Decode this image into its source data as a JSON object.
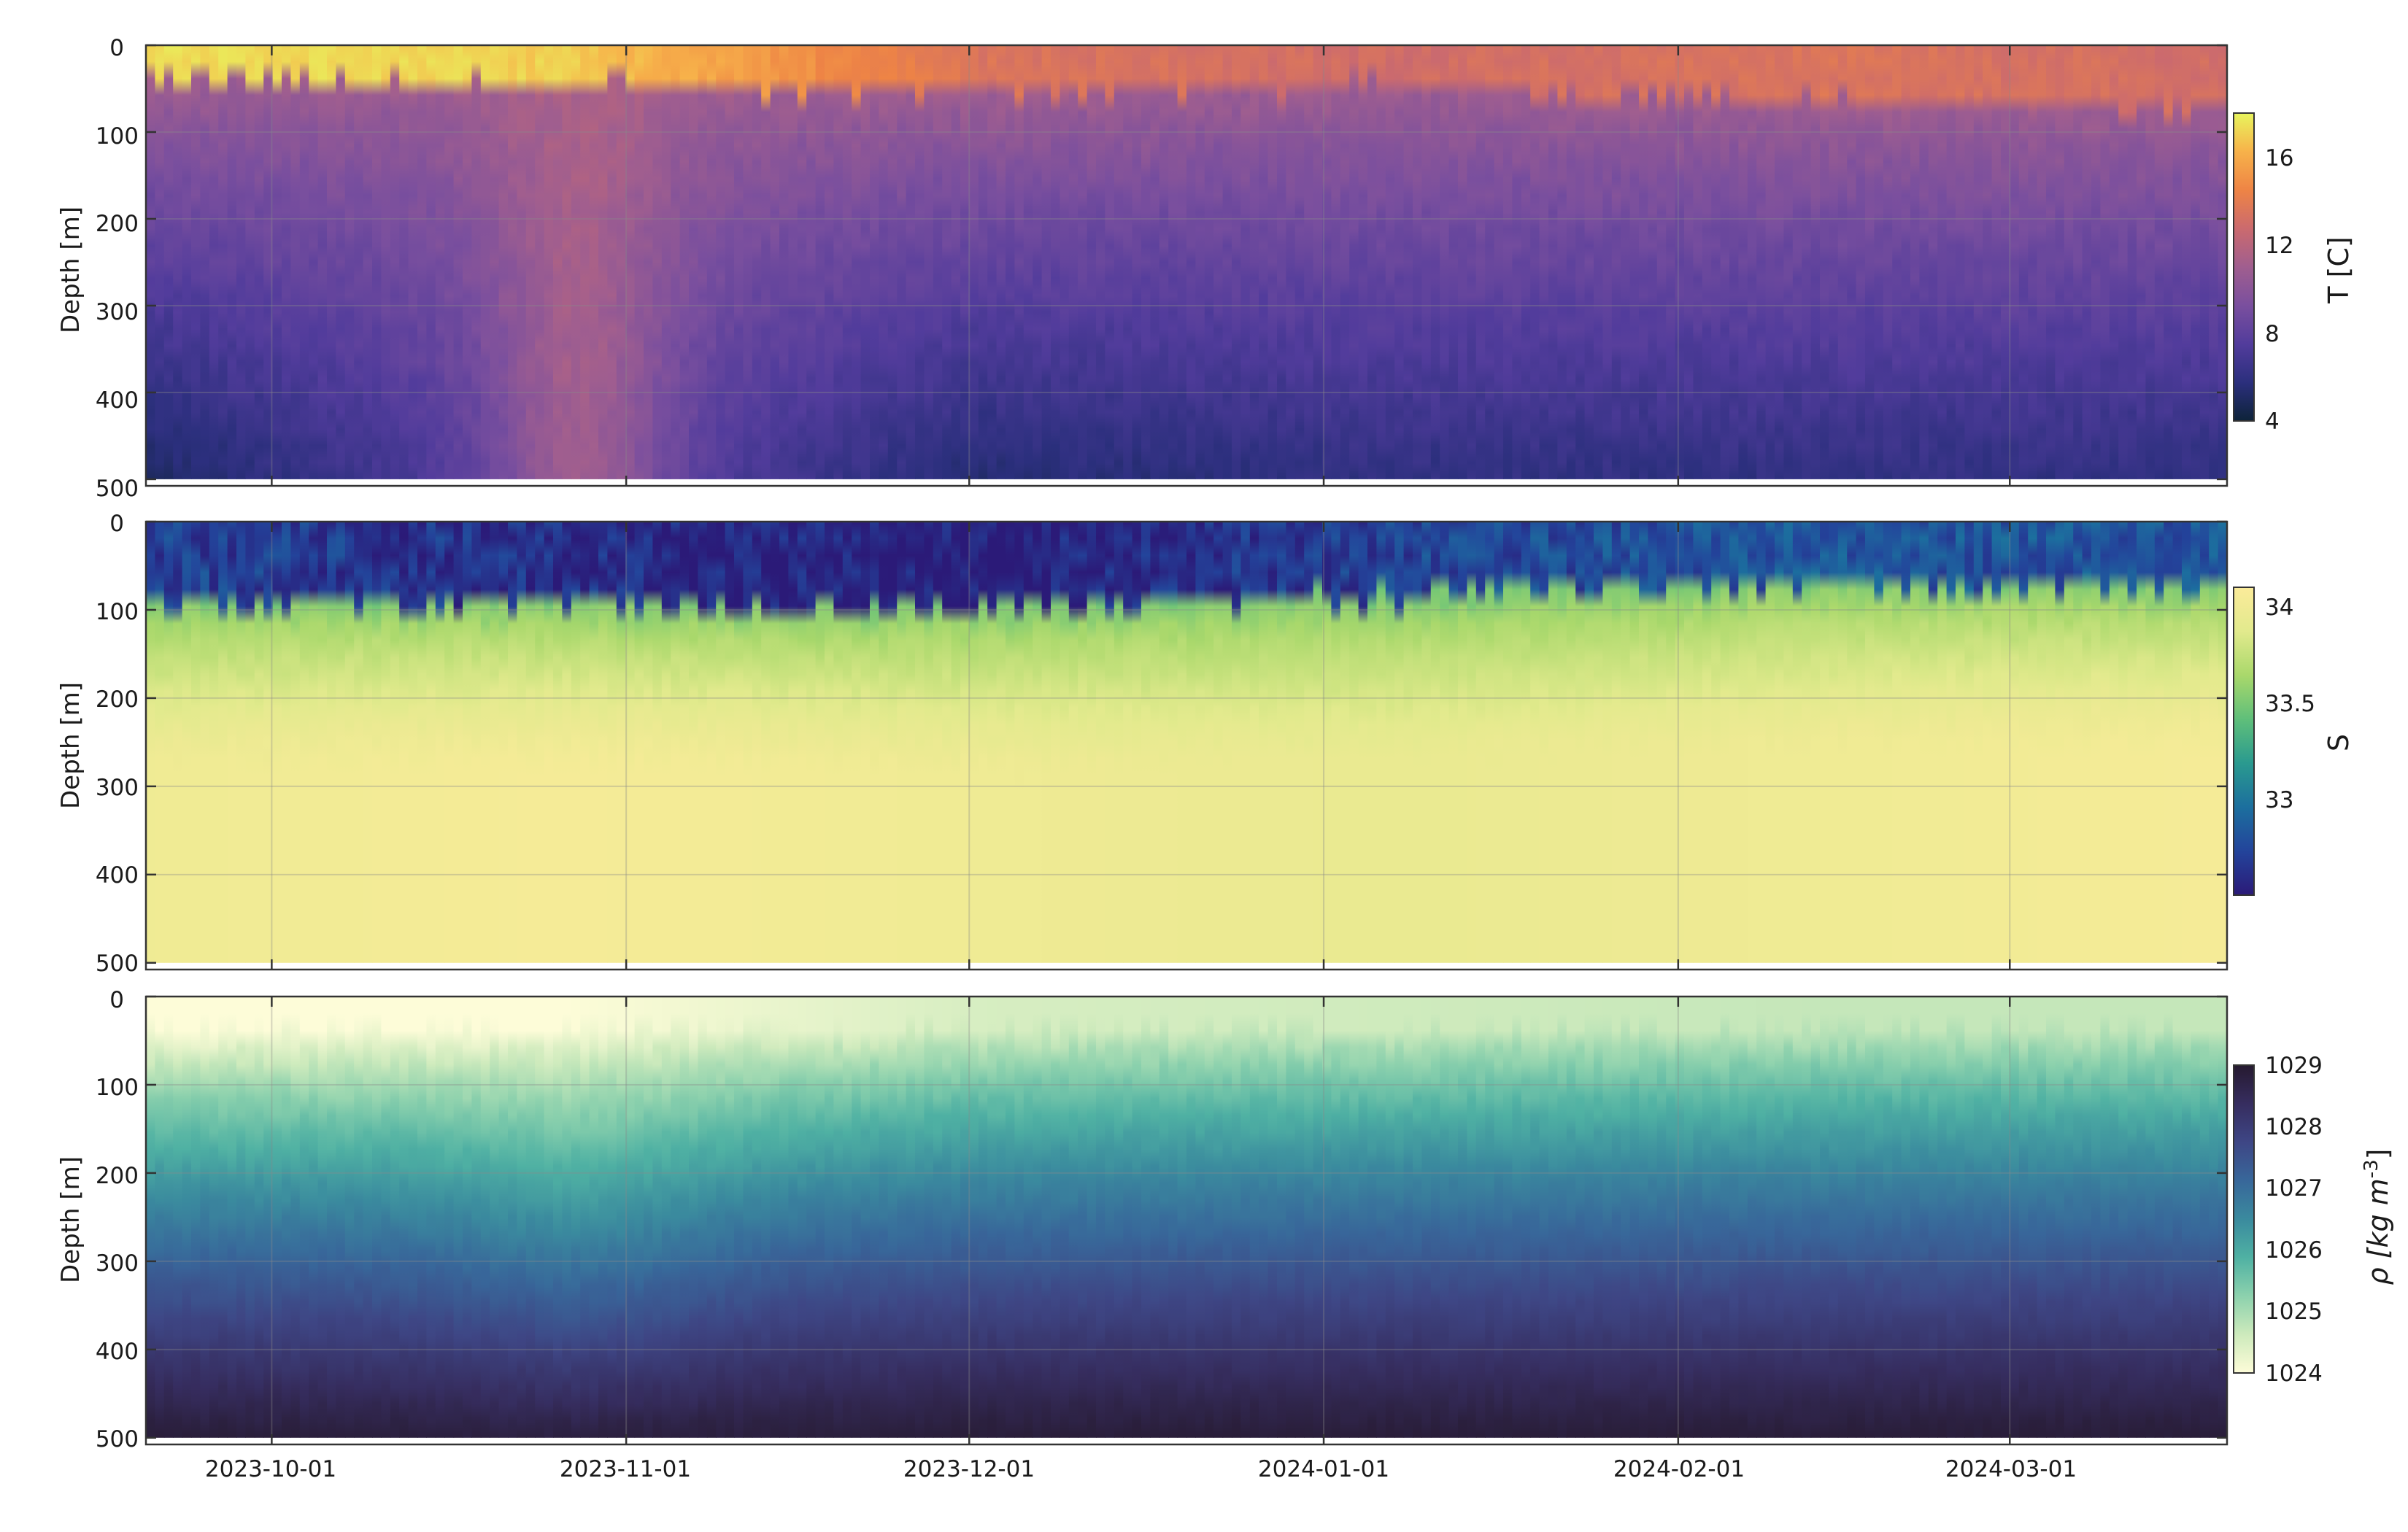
{
  "chart_data": [
    {
      "type": "heatmap",
      "title": "",
      "ylabel": "Depth [m]",
      "ylim": [
        500,
        0
      ],
      "y_ticks": [
        "0",
        "100",
        "200",
        "300",
        "400",
        "500"
      ],
      "x_tick_labels": [
        "2023-10-01",
        "2023-11-01",
        "2023-12-01",
        "2024-01-01",
        "2024-02-01",
        "2024-03-01"
      ],
      "x_range": [
        "2023-09-20",
        "2024-03-20"
      ],
      "grid": true,
      "variable": "Temperature",
      "colorbar": {
        "label": "T [C]",
        "range": [
          4,
          18
        ],
        "ticks": [
          "4",
          "8",
          "12",
          "16"
        ],
        "colors": [
          "#0d2339",
          "#2b2f7d",
          "#523c9c",
          "#7a4f9e",
          "#a05e8f",
          "#cb6a6e",
          "#ee8445",
          "#f7b24a",
          "#e8f55d"
        ]
      },
      "features": {
        "mixed_layer_depth_m": [
          40,
          45,
          55,
          45,
          65,
          70
        ],
        "surface_temperature_C": [
          17.5,
          17.0,
          13.5,
          13.0,
          13.5,
          13.0
        ],
        "bottom_temperature_C": [
          5.0,
          8.0,
          5.5,
          6.0,
          6.0,
          6.0
        ]
      }
    },
    {
      "type": "heatmap",
      "title": "",
      "ylabel": "Depth [m]",
      "ylim": [
        500,
        0
      ],
      "y_ticks": [
        "0",
        "100",
        "200",
        "300",
        "400",
        "500"
      ],
      "x_tick_labels": [
        "2023-10-01",
        "2023-11-01",
        "2023-12-01",
        "2024-01-01",
        "2024-02-01",
        "2024-03-01"
      ],
      "x_range": [
        "2023-09-20",
        "2024-03-20"
      ],
      "grid": true,
      "variable": "Salinity",
      "colorbar": {
        "label": "S",
        "range": [
          32.6,
          34.1
        ],
        "ticks": [
          "33",
          "33.5",
          "34"
        ],
        "colors": [
          "#2b1a78",
          "#23449b",
          "#1c6f9e",
          "#2a9a8f",
          "#5fbf7a",
          "#a9d86b",
          "#e2ea8d",
          "#fbeb9a"
        ]
      },
      "features": {
        "fresh_layer_depth_m": [
          90,
          95,
          100,
          85,
          70,
          75
        ],
        "surface_salinity": [
          32.8,
          32.7,
          32.6,
          32.8,
          32.9,
          32.9
        ],
        "deep_salinity": [
          34.0,
          34.05,
          34.0,
          33.95,
          34.0,
          34.05
        ]
      }
    },
    {
      "type": "heatmap",
      "title": "",
      "ylabel": "Depth [m]",
      "ylim": [
        500,
        0
      ],
      "y_ticks": [
        "0",
        "100",
        "200",
        "300",
        "400",
        "500"
      ],
      "x_tick_labels": [
        "2023-10-01",
        "2023-11-01",
        "2023-12-01",
        "2024-01-01",
        "2024-02-01",
        "2024-03-01"
      ],
      "x_range": [
        "2023-09-20",
        "2024-03-20"
      ],
      "grid": true,
      "variable": "Density",
      "colorbar": {
        "label_main": "ρ [kg m",
        "label_sup": "-3",
        "label_end": "]",
        "range": [
          1024,
          1029
        ],
        "ticks": [
          "1024",
          "1025",
          "1026",
          "1027",
          "1028",
          "1029"
        ],
        "colors": [
          "#fdfcd8",
          "#cdeabc",
          "#8cd1ad",
          "#4fb1a3",
          "#3a8a9e",
          "#38679a",
          "#3e4685",
          "#362d5f",
          "#261a30"
        ]
      },
      "features": {
        "surface_density": [
          1024.0,
          1024.0,
          1024.5,
          1024.6,
          1024.7,
          1024.7
        ],
        "deep_density": [
          1028.9,
          1028.8,
          1028.9,
          1028.9,
          1028.9,
          1028.9
        ]
      }
    }
  ]
}
